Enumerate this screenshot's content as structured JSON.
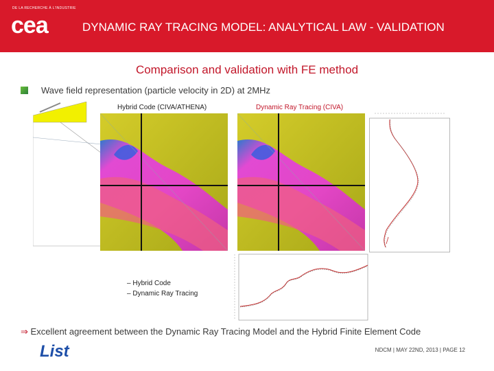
{
  "header": {
    "small_text": "DE LA RECHERCHE À L'INDUSTRIE",
    "logo_text": "cea",
    "title": "DYNAMIC RAY TRACING MODEL: ANALYTICAL LAW - VALIDATION"
  },
  "subtitle": "Comparison and validation with FE method",
  "bullet": {
    "text": "Wave field representation (particle velocity in 2D) at 2MHz"
  },
  "figure": {
    "label_hybrid": "Hybrid Code (CIVA/ATHENA)",
    "label_drt": "Dynamic Ray Tracing (CIVA)",
    "legend": [
      {
        "dash": "–",
        "label": "Hybrid Code"
      },
      {
        "dash": "–",
        "label": "Dynamic Ray Tracing"
      }
    ]
  },
  "conclusion": {
    "arrow": "⇒",
    "text": "Excellent agreement between the Dynamic Ray Tracing Model and the Hybrid Finite Element Code"
  },
  "footer": {
    "logo_text": "List",
    "text": "NDCM | MAY 22ND, 2013 | PAGE 12"
  },
  "colors": {
    "header_red": "#d8192a",
    "accent_red": "#c2172a",
    "field_magenta": "#e040e0",
    "field_yellow": "#c8c020"
  }
}
